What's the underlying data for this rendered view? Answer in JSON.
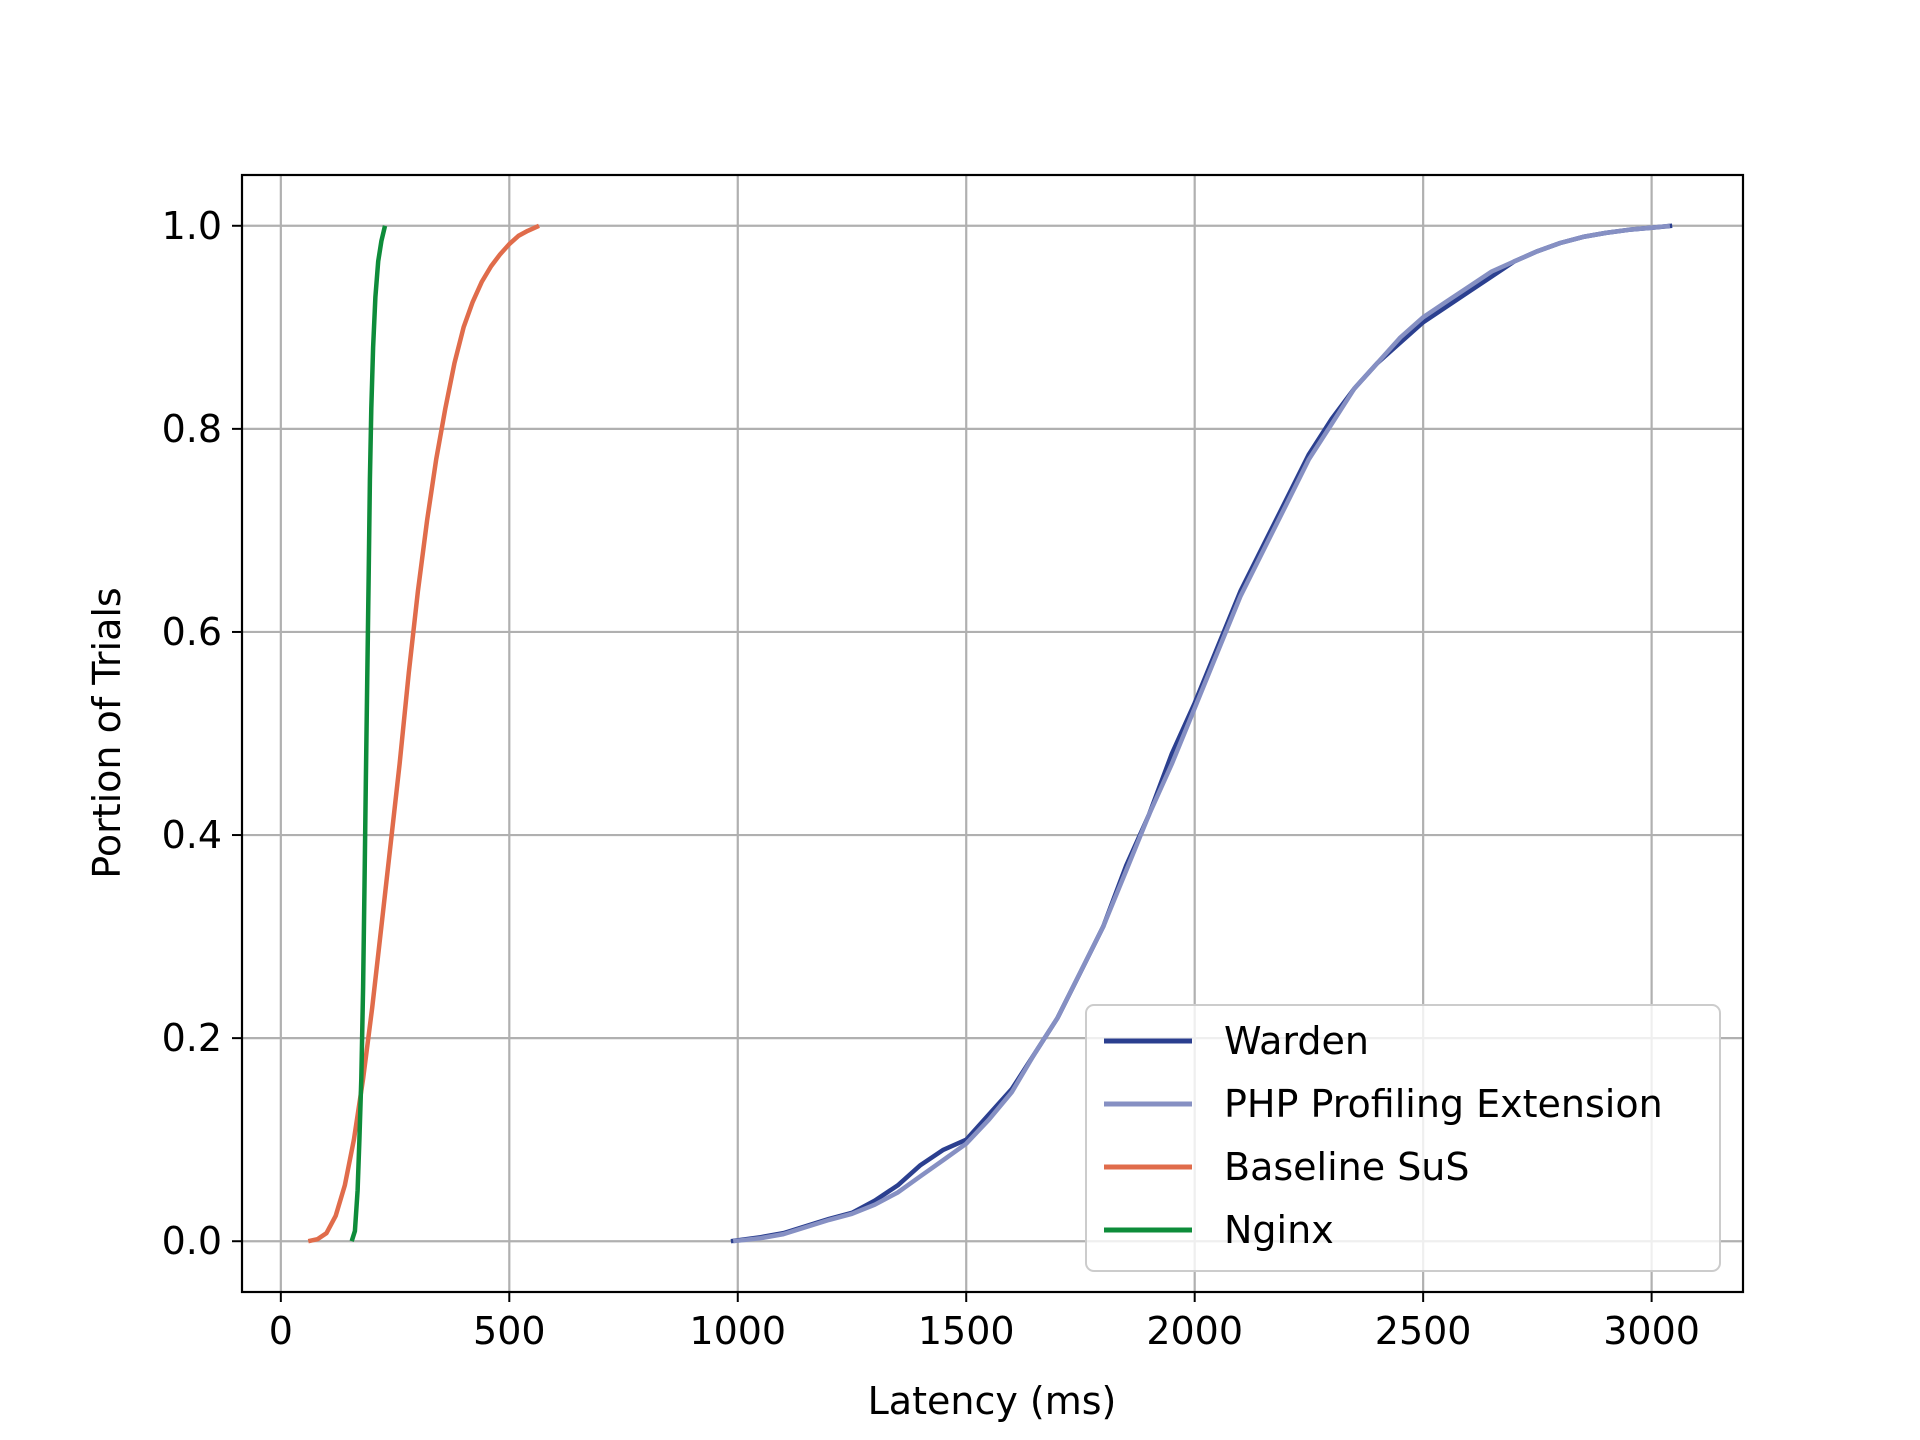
{
  "chart_data": {
    "type": "line",
    "title": "",
    "xlabel": "Latency (ms)",
    "ylabel": "Portion of Trials",
    "xlim": [
      -85,
      3200
    ],
    "ylim": [
      -0.05,
      1.05
    ],
    "xticks": [
      0,
      500,
      1000,
      1500,
      2000,
      2500,
      3000
    ],
    "xtick_labels": [
      "0",
      "500",
      "1000",
      "1500",
      "2000",
      "2500",
      "3000"
    ],
    "yticks": [
      0.0,
      0.2,
      0.4,
      0.6,
      0.8,
      1.0
    ],
    "ytick_labels": [
      "0.0",
      "0.2",
      "0.4",
      "0.6",
      "0.8",
      "1.0"
    ],
    "grid": true,
    "legend_position": "lower-right",
    "series": [
      {
        "name": "Warden",
        "color": "#2b3f8f",
        "points": [
          [
            985,
            0.0
          ],
          [
            1050,
            0.004
          ],
          [
            1100,
            0.008
          ],
          [
            1150,
            0.015
          ],
          [
            1200,
            0.022
          ],
          [
            1250,
            0.028
          ],
          [
            1300,
            0.04
          ],
          [
            1350,
            0.055
          ],
          [
            1400,
            0.075
          ],
          [
            1450,
            0.09
          ],
          [
            1500,
            0.1
          ],
          [
            1550,
            0.125
          ],
          [
            1600,
            0.15
          ],
          [
            1650,
            0.185
          ],
          [
            1700,
            0.22
          ],
          [
            1750,
            0.265
          ],
          [
            1800,
            0.31
          ],
          [
            1850,
            0.37
          ],
          [
            1900,
            0.42
          ],
          [
            1950,
            0.48
          ],
          [
            2000,
            0.53
          ],
          [
            2050,
            0.585
          ],
          [
            2100,
            0.64
          ],
          [
            2150,
            0.685
          ],
          [
            2200,
            0.73
          ],
          [
            2250,
            0.775
          ],
          [
            2300,
            0.81
          ],
          [
            2350,
            0.84
          ],
          [
            2400,
            0.865
          ],
          [
            2450,
            0.885
          ],
          [
            2500,
            0.905
          ],
          [
            2550,
            0.92
          ],
          [
            2600,
            0.935
          ],
          [
            2650,
            0.95
          ],
          [
            2700,
            0.965
          ],
          [
            2750,
            0.975
          ],
          [
            2800,
            0.983
          ],
          [
            2850,
            0.989
          ],
          [
            2900,
            0.993
          ],
          [
            2950,
            0.996
          ],
          [
            3000,
            0.998
          ],
          [
            3045,
            1.0
          ]
        ]
      },
      {
        "name": "PHP Profiling Extension",
        "color": "#8690c3",
        "points": [
          [
            990,
            0.0
          ],
          [
            1050,
            0.003
          ],
          [
            1100,
            0.007
          ],
          [
            1150,
            0.014
          ],
          [
            1200,
            0.021
          ],
          [
            1250,
            0.027
          ],
          [
            1300,
            0.036
          ],
          [
            1350,
            0.048
          ],
          [
            1400,
            0.064
          ],
          [
            1450,
            0.08
          ],
          [
            1500,
            0.096
          ],
          [
            1550,
            0.12
          ],
          [
            1600,
            0.147
          ],
          [
            1650,
            0.185
          ],
          [
            1700,
            0.22
          ],
          [
            1750,
            0.265
          ],
          [
            1800,
            0.31
          ],
          [
            1850,
            0.365
          ],
          [
            1900,
            0.42
          ],
          [
            1950,
            0.47
          ],
          [
            2000,
            0.525
          ],
          [
            2050,
            0.58
          ],
          [
            2100,
            0.635
          ],
          [
            2150,
            0.68
          ],
          [
            2200,
            0.725
          ],
          [
            2250,
            0.77
          ],
          [
            2300,
            0.805
          ],
          [
            2350,
            0.84
          ],
          [
            2400,
            0.865
          ],
          [
            2450,
            0.89
          ],
          [
            2500,
            0.91
          ],
          [
            2550,
            0.925
          ],
          [
            2600,
            0.94
          ],
          [
            2650,
            0.955
          ],
          [
            2700,
            0.965
          ],
          [
            2750,
            0.975
          ],
          [
            2800,
            0.983
          ],
          [
            2850,
            0.989
          ],
          [
            2900,
            0.993
          ],
          [
            2950,
            0.996
          ],
          [
            3000,
            0.998
          ],
          [
            3040,
            1.0
          ]
        ]
      },
      {
        "name": "Baseline SuS",
        "color": "#e06c4b",
        "points": [
          [
            60,
            0.0
          ],
          [
            80,
            0.002
          ],
          [
            100,
            0.008
          ],
          [
            120,
            0.025
          ],
          [
            140,
            0.055
          ],
          [
            160,
            0.1
          ],
          [
            180,
            0.16
          ],
          [
            200,
            0.23
          ],
          [
            220,
            0.31
          ],
          [
            240,
            0.39
          ],
          [
            260,
            0.47
          ],
          [
            280,
            0.56
          ],
          [
            300,
            0.64
          ],
          [
            320,
            0.71
          ],
          [
            340,
            0.77
          ],
          [
            360,
            0.82
          ],
          [
            380,
            0.865
          ],
          [
            400,
            0.9
          ],
          [
            420,
            0.925
          ],
          [
            440,
            0.945
          ],
          [
            460,
            0.96
          ],
          [
            480,
            0.972
          ],
          [
            500,
            0.982
          ],
          [
            520,
            0.99
          ],
          [
            540,
            0.995
          ],
          [
            565,
            1.0
          ]
        ]
      },
      {
        "name": "Nginx",
        "color": "#0e8c3a",
        "points": [
          [
            155,
            0.0
          ],
          [
            162,
            0.01
          ],
          [
            168,
            0.05
          ],
          [
            172,
            0.1
          ],
          [
            176,
            0.16
          ],
          [
            180,
            0.25
          ],
          [
            183,
            0.35
          ],
          [
            186,
            0.45
          ],
          [
            189,
            0.55
          ],
          [
            192,
            0.65
          ],
          [
            195,
            0.75
          ],
          [
            198,
            0.82
          ],
          [
            202,
            0.88
          ],
          [
            207,
            0.93
          ],
          [
            213,
            0.965
          ],
          [
            220,
            0.985
          ],
          [
            228,
            1.0
          ]
        ]
      }
    ]
  }
}
